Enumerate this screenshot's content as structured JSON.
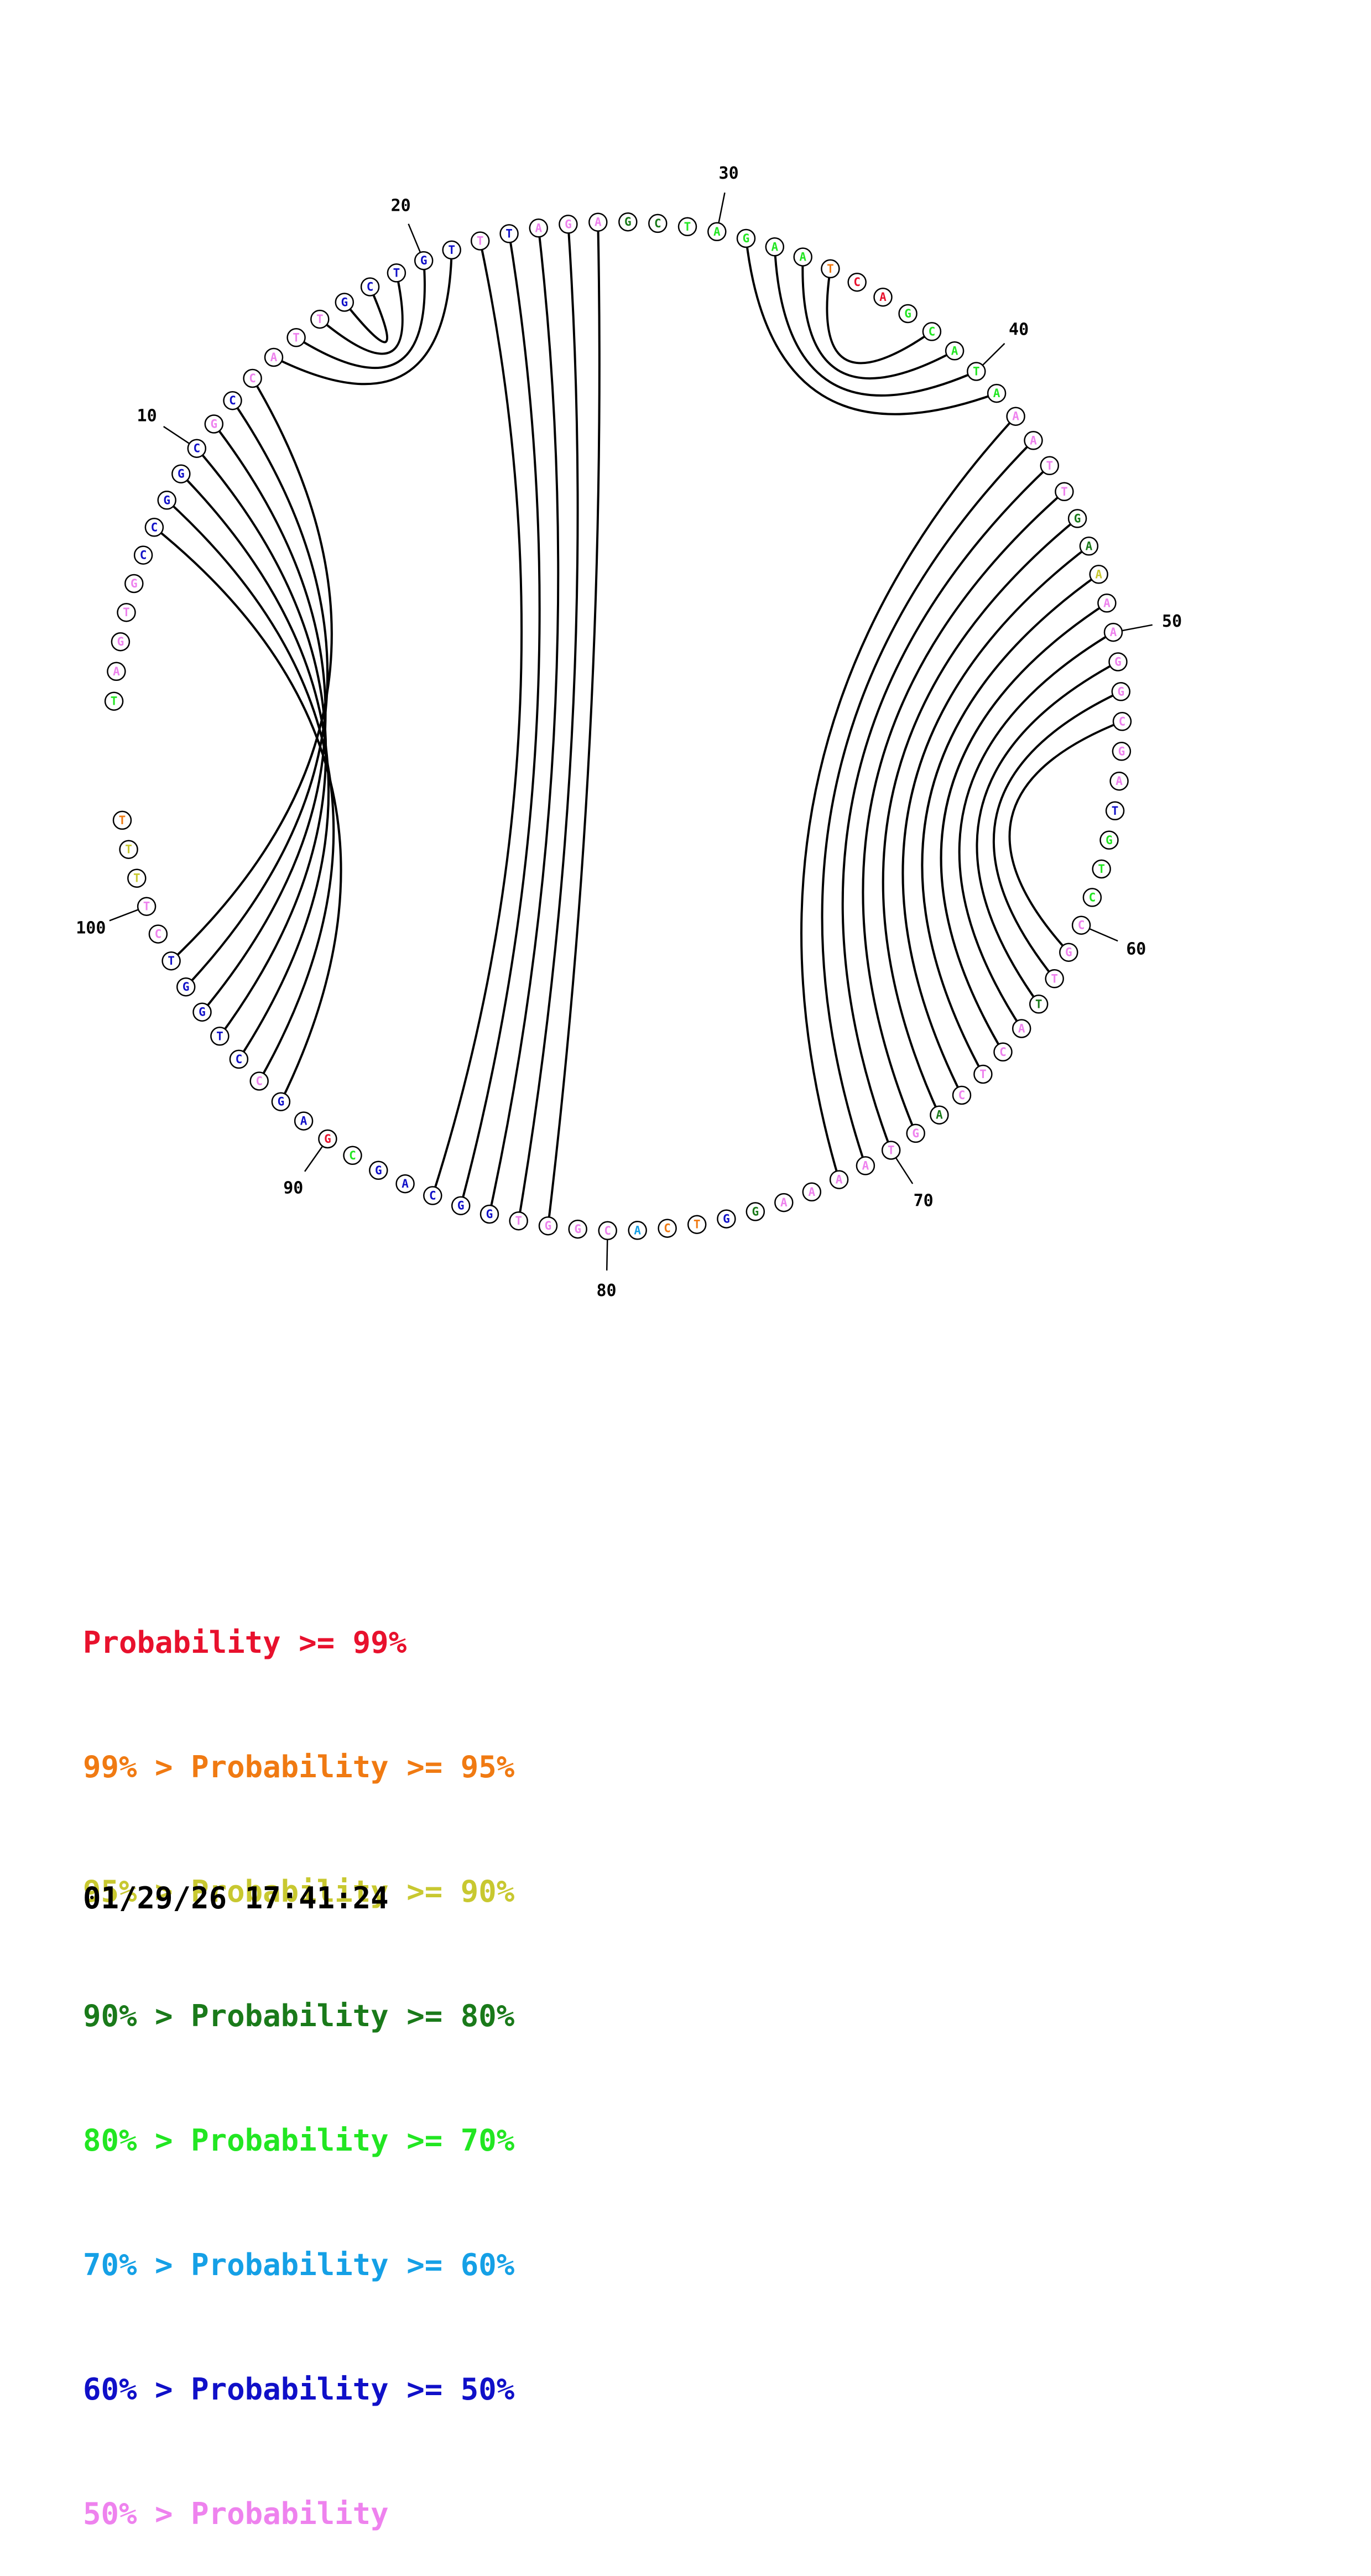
{
  "diagram": {
    "sequence": "TAGTGCCGGCGCCATTGCTGTTTAGAGCTAGAATCAGCATAAATTGAAAAGGCGATGTCCGTTACTCAGTAAAAGGTCACGGTGGCAGCGAGCCTGGTCTTTT",
    "colors": [
      "green",
      "pink",
      "pink",
      "pink",
      "pink",
      "blue",
      "blue",
      "blue",
      "blue",
      "blue",
      "pink",
      "blue",
      "pink",
      "pink",
      "pink",
      "pink",
      "blue",
      "blue",
      "blue",
      "blue",
      "blue",
      "pink",
      "blue",
      "pink",
      "pink",
      "pink",
      "dkgreen",
      "dkgreen",
      "green",
      "green",
      "green",
      "green",
      "green",
      "orange",
      "red",
      "red",
      "green",
      "green",
      "green",
      "green",
      "green",
      "pink",
      "pink",
      "pink",
      "pink",
      "dkgreen",
      "dkgreen",
      "yellow",
      "pink",
      "pink",
      "pink",
      "pink",
      "pink",
      "pink",
      "pink",
      "blue",
      "green",
      "green",
      "green",
      "pink",
      "pink",
      "pink",
      "dkgreen",
      "pink",
      "pink",
      "pink",
      "pink",
      "dkgreen",
      "pink",
      "pink",
      "pink",
      "pink",
      "pink",
      "pink",
      "dkgreen",
      "blue",
      "orange",
      "orange",
      "skyblue",
      "pink",
      "pink",
      "pink",
      "pink",
      "blue",
      "blue",
      "blue",
      "blue",
      "blue",
      "green",
      "red",
      "blue",
      "blue",
      "pink",
      "blue",
      "blue",
      "blue",
      "blue",
      "blue",
      "pink",
      "pink",
      "yellow",
      "yellow",
      "orange"
    ],
    "pairs": [
      [
        6,
        91
      ],
      [
        7,
        92
      ],
      [
        8,
        93
      ],
      [
        9,
        94
      ],
      [
        10,
        95
      ],
      [
        11,
        96
      ],
      [
        12,
        97
      ],
      [
        13,
        20
      ],
      [
        14,
        19
      ],
      [
        15,
        18
      ],
      [
        16,
        17
      ],
      [
        21,
        85
      ],
      [
        22,
        84
      ],
      [
        23,
        83
      ],
      [
        24,
        82
      ],
      [
        25,
        81
      ],
      [
        30,
        40
      ],
      [
        31,
        39
      ],
      [
        32,
        38
      ],
      [
        33,
        37
      ],
      [
        41,
        71
      ],
      [
        42,
        70
      ],
      [
        43,
        69
      ],
      [
        44,
        68
      ],
      [
        45,
        67
      ],
      [
        46,
        66
      ],
      [
        47,
        65
      ],
      [
        48,
        64
      ],
      [
        49,
        63
      ],
      [
        50,
        62
      ],
      [
        51,
        61
      ],
      [
        52,
        60
      ]
    ],
    "position_labels": [
      "10",
      "20",
      "30",
      "40",
      "50",
      "60",
      "70",
      "80",
      "90",
      "100"
    ]
  },
  "legend": [
    {
      "prefix": "",
      "label": "Probability",
      "suffix": ">= 99%",
      "color": "#e8112d"
    },
    {
      "prefix": "99% > ",
      "label": "Probability",
      "suffix": ">= 95%",
      "color": "#f07a12"
    },
    {
      "prefix": "95% > ",
      "label": "Probability",
      "suffix": ">= 90%",
      "color": "#c8c830"
    },
    {
      "prefix": "90% > ",
      "label": "Probability",
      "suffix": ">= 80%",
      "color": "#1a7a1a"
    },
    {
      "prefix": "80% > ",
      "label": "Probability",
      "suffix": ">= 70%",
      "color": "#22e622"
    },
    {
      "prefix": "70% > ",
      "label": "Probability",
      "suffix": ">= 60%",
      "color": "#15a0e6"
    },
    {
      "prefix": "60% > ",
      "label": "Probability",
      "suffix": ">= 50%",
      "color": "#1010c8"
    },
    {
      "prefix": "50% > ",
      "label": "Probability",
      "suffix": "",
      "color": "#ee82ee"
    }
  ],
  "timestamp": "01/29/26 17:41:24",
  "palette": {
    "red": "#e8112d",
    "orange": "#f07a12",
    "yellow": "#c8c830",
    "dkgreen": "#1a7a1a",
    "green": "#22e622",
    "skyblue": "#15a0e6",
    "blue": "#1010c8",
    "pink": "#ee82ee"
  }
}
